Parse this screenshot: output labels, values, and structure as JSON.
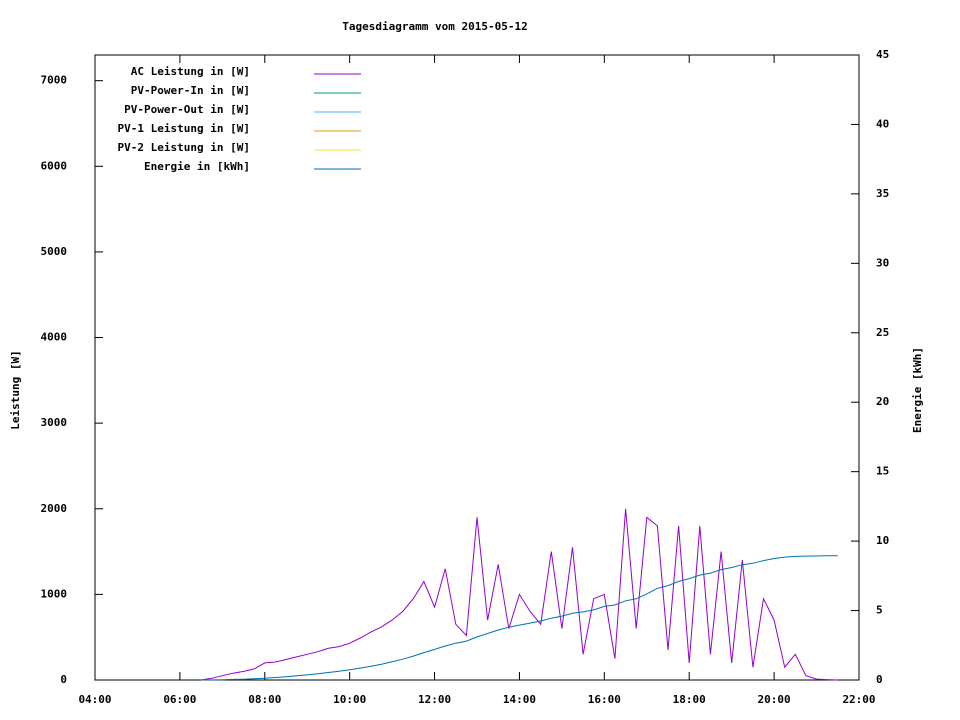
{
  "chart_data": {
    "type": "line",
    "title": "Tagesdiagramm vom 2015-05-12",
    "ylabel": "Leistung [W]",
    "y2label": "Energie [kWh]",
    "x": [
      "06:30",
      "06:45",
      "07:00",
      "07:15",
      "07:30",
      "07:45",
      "08:00",
      "08:15",
      "08:30",
      "08:45",
      "09:00",
      "09:15",
      "09:30",
      "09:45",
      "10:00",
      "10:15",
      "10:30",
      "10:45",
      "11:00",
      "11:15",
      "11:30",
      "11:45",
      "12:00",
      "12:15",
      "12:30",
      "12:45",
      "13:00",
      "13:15",
      "13:30",
      "13:45",
      "14:00",
      "14:15",
      "14:30",
      "14:45",
      "15:00",
      "15:15",
      "15:30",
      "15:45",
      "16:00",
      "16:15",
      "16:30",
      "16:45",
      "17:00",
      "17:15",
      "17:30",
      "17:45",
      "18:00",
      "18:15",
      "18:30",
      "18:45",
      "19:00",
      "19:15",
      "19:30",
      "19:45",
      "20:00",
      "20:15",
      "20:30",
      "20:45",
      "21:00",
      "21:15",
      "21:30"
    ],
    "series": [
      {
        "name": "AC Leistung in [W]",
        "color": "#9400d3",
        "values": [
          0,
          20,
          50,
          80,
          100,
          130,
          200,
          210,
          240,
          270,
          300,
          330,
          370,
          390,
          430,
          490,
          560,
          620,
          700,
          800,
          950,
          1150,
          850,
          1300,
          650,
          520,
          1900,
          700,
          1350,
          600,
          1000,
          800,
          650,
          1500,
          600,
          1550,
          300,
          950,
          1000,
          250,
          2000,
          600,
          1900,
          1800,
          350,
          1800,
          200,
          1800,
          300,
          1500,
          200,
          1400,
          150,
          950,
          700,
          150,
          300,
          50,
          10,
          5,
          0
        ]
      },
      {
        "name": "PV-Power-In in [W]",
        "color": "#009e73",
        "values": [
          null,
          null,
          null,
          null,
          null,
          null,
          null,
          null,
          null,
          null,
          null,
          null,
          null,
          null,
          null,
          null,
          null,
          null,
          null,
          null,
          null,
          null,
          null,
          null,
          null,
          null,
          null,
          null,
          null,
          null,
          null,
          null,
          null,
          null,
          null,
          null,
          null,
          null,
          null,
          null,
          null,
          null,
          null,
          null,
          null,
          null,
          null,
          null,
          null,
          null,
          null,
          null,
          null,
          null,
          null,
          null,
          null,
          null,
          null,
          null,
          null
        ]
      },
      {
        "name": "PV-Power-Out in [W]",
        "color": "#56b4e9",
        "values": [
          null,
          null,
          null,
          null,
          null,
          null,
          null,
          null,
          null,
          null,
          null,
          null,
          null,
          null,
          null,
          null,
          null,
          null,
          null,
          null,
          null,
          null,
          null,
          null,
          null,
          null,
          null,
          null,
          null,
          null,
          null,
          null,
          null,
          null,
          null,
          null,
          null,
          null,
          null,
          null,
          null,
          null,
          null,
          null,
          null,
          null,
          null,
          null,
          null,
          null,
          null,
          null,
          null,
          null,
          null,
          null,
          null,
          null,
          null,
          null,
          null
        ]
      },
      {
        "name": "PV-1 Leistung in [W]",
        "color": "#e69f00",
        "values": [
          null,
          null,
          null,
          null,
          null,
          null,
          null,
          null,
          null,
          null,
          null,
          null,
          null,
          null,
          null,
          null,
          null,
          null,
          null,
          null,
          null,
          null,
          null,
          null,
          null,
          null,
          null,
          null,
          null,
          null,
          null,
          null,
          null,
          null,
          null,
          null,
          null,
          null,
          null,
          null,
          null,
          null,
          null,
          null,
          null,
          null,
          null,
          null,
          null,
          null,
          null,
          null,
          null,
          null,
          null,
          null,
          null,
          null,
          null,
          null,
          null
        ]
      },
      {
        "name": "PV-2 Leistung in [W]",
        "color": "#f0e442",
        "values": [
          null,
          null,
          null,
          null,
          null,
          null,
          null,
          null,
          null,
          null,
          null,
          null,
          null,
          null,
          null,
          null,
          null,
          null,
          null,
          null,
          null,
          null,
          null,
          null,
          null,
          null,
          null,
          null,
          null,
          null,
          null,
          null,
          null,
          null,
          null,
          null,
          null,
          null,
          null,
          null,
          null,
          null,
          null,
          null,
          null,
          null,
          null,
          null,
          null,
          null,
          null,
          null,
          null,
          null,
          null,
          null,
          null,
          null,
          null,
          null,
          null
        ]
      },
      {
        "name": "Energie in [kWh]",
        "color": "#0072b2",
        "axis": "y2",
        "values": [
          0,
          0.01,
          0.02,
          0.04,
          0.06,
          0.09,
          0.13,
          0.18,
          0.23,
          0.3,
          0.37,
          0.45,
          0.54,
          0.63,
          0.74,
          0.86,
          0.99,
          1.14,
          1.31,
          1.5,
          1.72,
          1.97,
          2.2,
          2.45,
          2.65,
          2.8,
          3.1,
          3.35,
          3.6,
          3.8,
          3.95,
          4.1,
          4.25,
          4.45,
          4.6,
          4.8,
          4.9,
          5.05,
          5.3,
          5.4,
          5.7,
          5.85,
          6.2,
          6.6,
          6.8,
          7.1,
          7.3,
          7.55,
          7.7,
          7.95,
          8.1,
          8.3,
          8.4,
          8.6,
          8.75,
          8.85,
          8.9,
          8.92,
          8.93,
          8.94,
          8.94
        ]
      }
    ],
    "xlim": [
      "04:00",
      "22:00"
    ],
    "xticks": [
      "04:00",
      "06:00",
      "08:00",
      "10:00",
      "12:00",
      "14:00",
      "16:00",
      "18:00",
      "20:00",
      "22:00"
    ],
    "ylim": [
      0,
      7300
    ],
    "yticks": [
      0,
      1000,
      2000,
      3000,
      4000,
      5000,
      6000,
      7000
    ],
    "y2lim": [
      0,
      45
    ],
    "y2ticks": [
      0,
      5,
      10,
      15,
      20,
      25,
      30,
      35,
      40,
      45
    ],
    "legend": "top-left"
  }
}
